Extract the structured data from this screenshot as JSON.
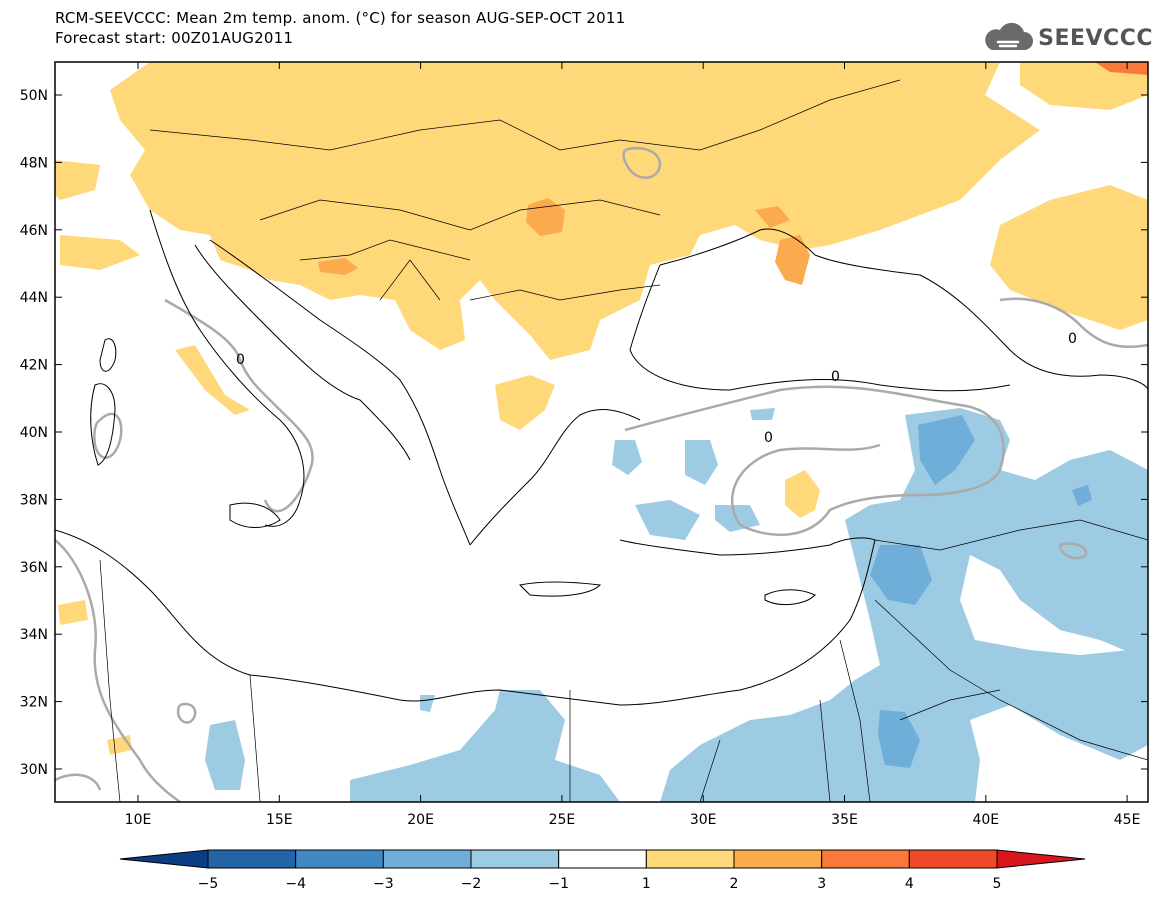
{
  "header": {
    "title_line1": "RCM-SEEVCCC: Mean 2m temp. anom. (°C) for season AUG-SEP-OCT 2011",
    "title_line2": "Forecast start: 00Z01AUG2011"
  },
  "logo": {
    "text": "SEEVCCC",
    "icon": "cloud-icon"
  },
  "map": {
    "lon_ticks": [
      "10E",
      "15E",
      "20E",
      "25E",
      "30E",
      "35E",
      "40E",
      "45E"
    ],
    "lat_ticks": [
      "30N",
      "32N",
      "34N",
      "36N",
      "38N",
      "40N",
      "42N",
      "44N",
      "46N",
      "48N",
      "50N"
    ],
    "contour_label": "0",
    "colors": {
      "anom_1_2": "#ffd87a",
      "anom_2_3": "#fcaa4e",
      "anom_3_4": "#f9793b",
      "anom_4_5": "#f04a2b",
      "anom_m1_m2": "#9ecbe4",
      "anom_m2_m3": "#6faed8",
      "anom_m3_m4": "#4189c4",
      "anom_m4_m5": "#2463a8",
      "contour": "#aaaaaa",
      "coast": "#000000"
    }
  },
  "colorbar": {
    "labels": [
      "−5",
      "−4",
      "−3",
      "−2",
      "−1",
      "1",
      "2",
      "3",
      "4",
      "5"
    ],
    "colors": [
      "#0c3c82",
      "#2463a8",
      "#4189c4",
      "#6faed8",
      "#9ecbe4",
      "#ffffff",
      "#ffd87a",
      "#fcaa4e",
      "#f9793b",
      "#f04a2b",
      "#d8161e"
    ]
  }
}
